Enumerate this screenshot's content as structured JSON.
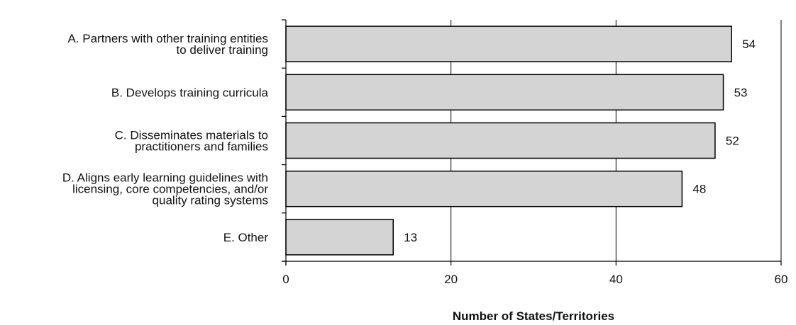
{
  "chart_data": {
    "type": "bar",
    "orientation": "horizontal",
    "categories": [
      [
        "A. Partners with other training entities",
        "to deliver training"
      ],
      [
        "B. Develops training curricula"
      ],
      [
        "C. Disseminates materials to",
        "practitioners and families"
      ],
      [
        "D. Aligns early learning guidelines with",
        "licensing, core competencies, and/or",
        "quality rating systems"
      ],
      [
        "E. Other"
      ]
    ],
    "values": [
      54,
      53,
      52,
      48,
      13
    ],
    "value_labels": [
      "54",
      "53",
      "52",
      "48",
      "13"
    ],
    "xlabel": "Number of States/Territories",
    "xlim": [
      0,
      60
    ],
    "xticks": [
      0,
      20,
      40,
      60
    ],
    "xtick_labels": [
      "0",
      "20",
      "40",
      "60"
    ],
    "grid": "vertical gridlines at ticks",
    "colors": {
      "bar_fill": "#d4d4d4",
      "bar_stroke": "#000000",
      "axis": "#000000",
      "grid": "#000000"
    }
  }
}
